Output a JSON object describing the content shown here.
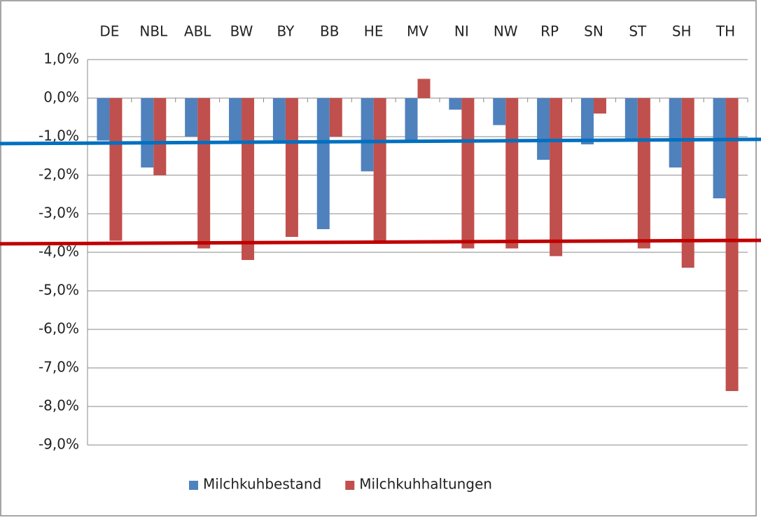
{
  "chart_data": {
    "type": "bar",
    "categories": [
      "DE",
      "NBL",
      "ABL",
      "BW",
      "BY",
      "BB",
      "HE",
      "MV",
      "NI",
      "NW",
      "RP",
      "SN",
      "ST",
      "SH",
      "TH"
    ],
    "series": [
      {
        "name": "Milchkuhbestand",
        "color": "#4f81bd",
        "values": [
          -1.1,
          -1.8,
          -1.0,
          -1.1,
          -1.1,
          -3.4,
          -1.9,
          -1.1,
          -0.3,
          -0.7,
          -1.6,
          -1.2,
          -1.1,
          -1.8,
          -2.6
        ]
      },
      {
        "name": "Milchkuhhaltungen",
        "color": "#c0504d",
        "values": [
          -3.7,
          -2.0,
          -3.9,
          -4.2,
          -3.6,
          -1.0,
          -3.7,
          0.5,
          -3.9,
          -3.9,
          -4.1,
          -0.4,
          -3.9,
          -4.4,
          -7.6
        ]
      }
    ],
    "ylim": [
      -9,
      1
    ],
    "yticks": [
      {
        "value": 1,
        "label": "1,0%"
      },
      {
        "value": 0,
        "label": "0,0%"
      },
      {
        "value": -1,
        "label": "-1,0%"
      },
      {
        "value": -2,
        "label": "-2,0%"
      },
      {
        "value": -3,
        "label": "-3,0%"
      },
      {
        "value": -4,
        "label": "-4,0%"
      },
      {
        "value": -5,
        "label": "-5,0%"
      },
      {
        "value": -6,
        "label": "-6,0%"
      },
      {
        "value": -7,
        "label": "-7,0%"
      },
      {
        "value": -8,
        "label": "-8,0%"
      },
      {
        "value": -9,
        "label": "-9,0%"
      }
    ],
    "grid": true,
    "legend": "bottom",
    "annotation_lines": [
      {
        "color": "#0070c0",
        "values": [
          -1.18,
          -1.07
        ]
      },
      {
        "color": "#c00000",
        "values": [
          -3.78,
          -3.69
        ]
      }
    ]
  }
}
